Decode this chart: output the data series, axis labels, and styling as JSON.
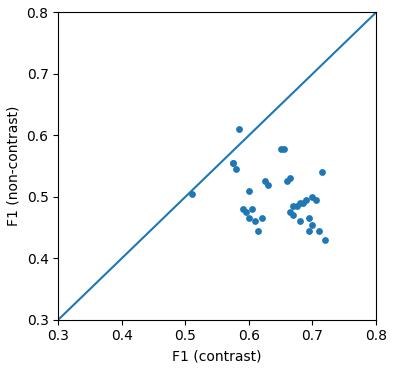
{
  "x_contrast": [
    0.51,
    0.575,
    0.575,
    0.58,
    0.585,
    0.59,
    0.595,
    0.6,
    0.6,
    0.605,
    0.61,
    0.615,
    0.62,
    0.625,
    0.63,
    0.65,
    0.655,
    0.66,
    0.665,
    0.665,
    0.67,
    0.67,
    0.675,
    0.68,
    0.68,
    0.685,
    0.69,
    0.695,
    0.695,
    0.7,
    0.7,
    0.705,
    0.71,
    0.715,
    0.72
  ],
  "y_noncontrast": [
    0.505,
    0.555,
    0.555,
    0.545,
    0.61,
    0.48,
    0.475,
    0.465,
    0.51,
    0.48,
    0.46,
    0.445,
    0.465,
    0.525,
    0.52,
    0.578,
    0.578,
    0.525,
    0.53,
    0.475,
    0.485,
    0.47,
    0.485,
    0.49,
    0.46,
    0.49,
    0.495,
    0.465,
    0.445,
    0.455,
    0.5,
    0.495,
    0.445,
    0.54,
    0.43
  ],
  "xlim": [
    0.3,
    0.8
  ],
  "ylim": [
    0.3,
    0.8
  ],
  "xticks": [
    0.3,
    0.4,
    0.5,
    0.6,
    0.7,
    0.8
  ],
  "yticks": [
    0.3,
    0.4,
    0.5,
    0.6,
    0.7,
    0.8
  ],
  "xlabel": "F1 (contrast)",
  "ylabel": "F1 (non-contrast)",
  "scatter_color": "#1f77b4",
  "line_color": "#1f77b4",
  "marker_size": 15,
  "line_width": 1.5,
  "figsize": [
    3.94,
    3.7
  ],
  "dpi": 100
}
